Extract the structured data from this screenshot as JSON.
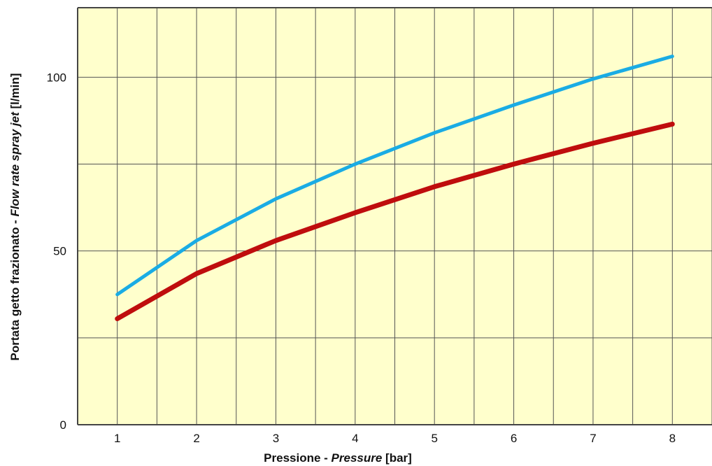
{
  "chart_data": {
    "type": "line",
    "title": "",
    "xlabel": {
      "main": "Pressione - ",
      "italic": "Pressure",
      "unit": " [bar]"
    },
    "ylabel": {
      "main": "Portata getto frazionato - ",
      "italic": "Flow rate spray jet",
      "unit": " [l/min]"
    },
    "xlim": [
      0.5,
      8.5
    ],
    "ylim": [
      0,
      120
    ],
    "x_ticks": [
      1,
      2,
      3,
      4,
      5,
      6,
      7,
      8
    ],
    "y_ticks": [
      0,
      50,
      100
    ],
    "x_gridlines": [
      0.5,
      1,
      1.5,
      2,
      2.5,
      3,
      3.5,
      4,
      4.5,
      5,
      5.5,
      6,
      6.5,
      7,
      7.5,
      8,
      8.5
    ],
    "y_gridlines": [
      25,
      50,
      75,
      100
    ],
    "grid": true,
    "plot_background": "#FFFFCC",
    "x": [
      1,
      2,
      3,
      4,
      5,
      6,
      7,
      8
    ],
    "series": [
      {
        "color": "#1AACE4",
        "values": [
          37.5,
          53,
          65,
          75,
          84,
          92,
          99.5,
          106
        ]
      },
      {
        "color": "#BF0D0D",
        "values": [
          30.5,
          43.5,
          53,
          61,
          68.5,
          75,
          81,
          86.5
        ]
      }
    ]
  }
}
